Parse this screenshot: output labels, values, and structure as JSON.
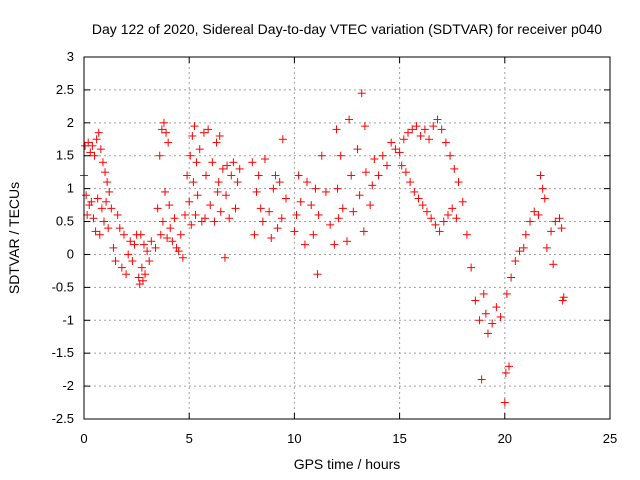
{
  "chart_data": {
    "type": "scatter",
    "title": "Day 122 of 2020, Sidereal Day-to-day VTEC variation (SDTVAR) for receiver p040",
    "xlabel": "GPS time / hours",
    "ylabel": "SDTVAR / TECUs",
    "xlim": [
      0,
      25
    ],
    "ylim": [
      -2.5,
      3
    ],
    "xticks": [
      0,
      5,
      10,
      15,
      20,
      25
    ],
    "yticks": [
      -2.5,
      -2,
      -1.5,
      -1,
      -0.5,
      0,
      0.5,
      1,
      1.5,
      2,
      2.5,
      3
    ],
    "xtick_labels": [
      "0",
      "5",
      "10",
      "15",
      "20",
      "25"
    ],
    "ytick_labels": [
      "-2.5",
      "-2",
      "-1.5",
      "-1",
      "-0.5",
      "0",
      "0.5",
      "1",
      "1.5",
      "2",
      "2.5",
      "3"
    ],
    "grid": true,
    "marker": "+",
    "marker_color": "#ff0000",
    "series": [
      {
        "name": "p040",
        "points": [
          [
            0.0,
            1.2
          ],
          [
            0.05,
            1.65
          ],
          [
            0.1,
            0.9
          ],
          [
            0.15,
            0.6
          ],
          [
            0.2,
            1.7
          ],
          [
            0.25,
            0.75
          ],
          [
            0.3,
            1.55
          ],
          [
            0.35,
            0.8
          ],
          [
            0.4,
            1.65
          ],
          [
            0.45,
            0.55
          ],
          [
            0.5,
            1.5
          ],
          [
            0.55,
            0.35
          ],
          [
            0.6,
            1.75
          ],
          [
            0.65,
            0.85
          ],
          [
            0.7,
            1.85
          ],
          [
            0.75,
            0.3
          ],
          [
            0.8,
            1.6
          ],
          [
            0.85,
            0.7
          ],
          [
            0.9,
            1.4
          ],
          [
            0.95,
            0.5
          ],
          [
            1.0,
            1.25
          ],
          [
            1.05,
            0.8
          ],
          [
            1.1,
            1.1
          ],
          [
            1.15,
            0.4
          ],
          [
            1.2,
            0.95
          ],
          [
            1.3,
            0.7
          ],
          [
            1.4,
            0.1
          ],
          [
            1.5,
            -0.1
          ],
          [
            1.6,
            0.6
          ],
          [
            1.7,
            0.4
          ],
          [
            1.8,
            -0.2
          ],
          [
            1.9,
            0.3
          ],
          [
            2.0,
            -0.3
          ],
          [
            2.1,
            0.0
          ],
          [
            2.2,
            0.2
          ],
          [
            2.3,
            -0.1
          ],
          [
            2.4,
            0.15
          ],
          [
            2.5,
            0.3
          ],
          [
            2.6,
            -0.35
          ],
          [
            2.65,
            -0.45
          ],
          [
            2.7,
            0.3
          ],
          [
            2.75,
            -0.2
          ],
          [
            2.8,
            -0.4
          ],
          [
            2.85,
            0.15
          ],
          [
            2.9,
            -0.3
          ],
          [
            3.0,
            0.05
          ],
          [
            3.1,
            -0.1
          ],
          [
            3.2,
            0.2
          ],
          [
            3.4,
            0.1
          ],
          [
            3.5,
            0.7
          ],
          [
            3.6,
            1.5
          ],
          [
            3.65,
            0.3
          ],
          [
            3.7,
            1.9
          ],
          [
            3.75,
            0.5
          ],
          [
            3.8,
            2.0
          ],
          [
            3.85,
            0.95
          ],
          [
            3.9,
            1.85
          ],
          [
            3.95,
            0.25
          ],
          [
            4.0,
            1.7
          ],
          [
            4.05,
            0.75
          ],
          [
            4.1,
            0.4
          ],
          [
            4.2,
            0.2
          ],
          [
            4.3,
            0.55
          ],
          [
            4.4,
            0.1
          ],
          [
            4.5,
            0.05
          ],
          [
            4.6,
            0.3
          ],
          [
            4.7,
            -0.05
          ],
          [
            4.8,
            0.6
          ],
          [
            4.9,
            1.2
          ],
          [
            5.0,
            0.8
          ],
          [
            5.05,
            1.5
          ],
          [
            5.1,
            0.45
          ],
          [
            5.15,
            1.8
          ],
          [
            5.2,
            1.1
          ],
          [
            5.25,
            1.95
          ],
          [
            5.3,
            0.6
          ],
          [
            5.35,
            1.4
          ],
          [
            5.4,
            0.9
          ],
          [
            5.5,
            1.6
          ],
          [
            5.6,
            0.5
          ],
          [
            5.7,
            1.85
          ],
          [
            5.75,
            0.55
          ],
          [
            5.8,
            1.2
          ],
          [
            5.9,
            1.9
          ],
          [
            6.0,
            0.75
          ],
          [
            6.1,
            1.4
          ],
          [
            6.2,
            0.5
          ],
          [
            6.3,
            1.7
          ],
          [
            6.35,
            0.95
          ],
          [
            6.4,
            1.1
          ],
          [
            6.45,
            1.8
          ],
          [
            6.5,
            0.65
          ],
          [
            6.6,
            1.3
          ],
          [
            6.7,
            -0.05
          ],
          [
            6.75,
            0.9
          ],
          [
            6.8,
            1.35
          ],
          [
            6.9,
            0.55
          ],
          [
            7.0,
            1.2
          ],
          [
            7.1,
            1.4
          ],
          [
            7.2,
            0.7
          ],
          [
            7.3,
            1.1
          ],
          [
            7.4,
            1.3
          ],
          [
            8.0,
            1.4
          ],
          [
            8.1,
            0.3
          ],
          [
            8.2,
            0.95
          ],
          [
            8.3,
            1.2
          ],
          [
            8.4,
            0.7
          ],
          [
            8.5,
            0.5
          ],
          [
            8.6,
            1.45
          ],
          [
            8.8,
            0.65
          ],
          [
            8.9,
            0.25
          ],
          [
            9.0,
            1.0
          ],
          [
            9.1,
            1.2
          ],
          [
            9.2,
            0.4
          ],
          [
            9.3,
            1.1
          ],
          [
            9.4,
            0.55
          ],
          [
            9.45,
            1.75
          ],
          [
            9.6,
            0.85
          ],
          [
            10.0,
            0.35
          ],
          [
            10.1,
            0.6
          ],
          [
            10.2,
            1.2
          ],
          [
            10.3,
            0.8
          ],
          [
            10.5,
            0.15
          ],
          [
            10.6,
            1.1
          ],
          [
            10.8,
            0.75
          ],
          [
            10.9,
            0.3
          ],
          [
            11.0,
            1.0
          ],
          [
            11.1,
            -0.3
          ],
          [
            11.15,
            0.6
          ],
          [
            11.3,
            1.5
          ],
          [
            11.5,
            0.95
          ],
          [
            11.7,
            0.45
          ],
          [
            11.9,
            0.15
          ],
          [
            12.0,
            1.9
          ],
          [
            12.05,
            1.0
          ],
          [
            12.1,
            0.55
          ],
          [
            12.2,
            1.5
          ],
          [
            12.3,
            0.7
          ],
          [
            12.5,
            0.2
          ],
          [
            12.6,
            2.05
          ],
          [
            12.7,
            1.2
          ],
          [
            12.8,
            0.65
          ],
          [
            13.0,
            1.6
          ],
          [
            13.1,
            0.9
          ],
          [
            13.2,
            2.45
          ],
          [
            13.3,
            0.35
          ],
          [
            13.35,
            1.95
          ],
          [
            13.4,
            1.25
          ],
          [
            13.6,
            0.75
          ],
          [
            13.7,
            1.05
          ],
          [
            13.8,
            1.45
          ],
          [
            14.0,
            1.2
          ],
          [
            14.2,
            1.5
          ],
          [
            14.4,
            1.35
          ],
          [
            14.6,
            1.7
          ],
          [
            14.8,
            1.6
          ],
          [
            15.0,
            1.55
          ],
          [
            15.2,
            1.75
          ],
          [
            15.4,
            1.85
          ],
          [
            15.6,
            1.9
          ],
          [
            15.8,
            1.95
          ],
          [
            16.0,
            1.8
          ],
          [
            16.2,
            1.9
          ],
          [
            16.4,
            1.75
          ],
          [
            16.6,
            1.95
          ],
          [
            16.8,
            2.05
          ],
          [
            17.0,
            1.9
          ],
          [
            17.2,
            1.7
          ],
          [
            17.4,
            1.5
          ],
          [
            17.6,
            1.3
          ],
          [
            17.8,
            1.1
          ],
          [
            18.0,
            0.8
          ],
          [
            18.2,
            0.3
          ],
          [
            18.4,
            -0.2
          ],
          [
            18.6,
            -0.7
          ],
          [
            18.8,
            -1.0
          ],
          [
            18.9,
            -1.9
          ],
          [
            19.0,
            -0.6
          ],
          [
            19.1,
            -0.9
          ],
          [
            19.2,
            -1.2
          ],
          [
            19.4,
            -1.05
          ],
          [
            19.6,
            -0.8
          ],
          [
            19.8,
            -0.95
          ],
          [
            20.0,
            -2.25
          ],
          [
            20.05,
            -1.8
          ],
          [
            20.1,
            -0.6
          ],
          [
            20.2,
            -1.7
          ],
          [
            20.3,
            -0.35
          ],
          [
            20.5,
            -0.1
          ],
          [
            20.7,
            0.05
          ],
          [
            20.9,
            0.1
          ],
          [
            21.0,
            0.3
          ],
          [
            21.2,
            0.5
          ],
          [
            21.4,
            0.65
          ],
          [
            21.6,
            0.6
          ],
          [
            21.7,
            1.2
          ],
          [
            21.8,
            1.0
          ],
          [
            21.9,
            0.85
          ],
          [
            22.0,
            0.1
          ],
          [
            22.2,
            0.35
          ],
          [
            22.3,
            -0.15
          ],
          [
            22.4,
            0.5
          ],
          [
            22.6,
            0.55
          ],
          [
            22.7,
            0.4
          ],
          [
            22.75,
            -0.7
          ],
          [
            22.8,
            -0.65
          ],
          [
            15.1,
            1.35
          ],
          [
            15.3,
            1.25
          ],
          [
            15.5,
            1.1
          ],
          [
            15.7,
            0.95
          ],
          [
            15.9,
            0.85
          ],
          [
            16.1,
            0.75
          ],
          [
            16.3,
            0.65
          ],
          [
            16.5,
            0.55
          ],
          [
            16.7,
            0.45
          ],
          [
            16.9,
            0.35
          ],
          [
            17.1,
            0.5
          ],
          [
            17.3,
            0.6
          ],
          [
            17.5,
            0.7
          ],
          [
            17.7,
            0.55
          ]
        ]
      }
    ]
  }
}
